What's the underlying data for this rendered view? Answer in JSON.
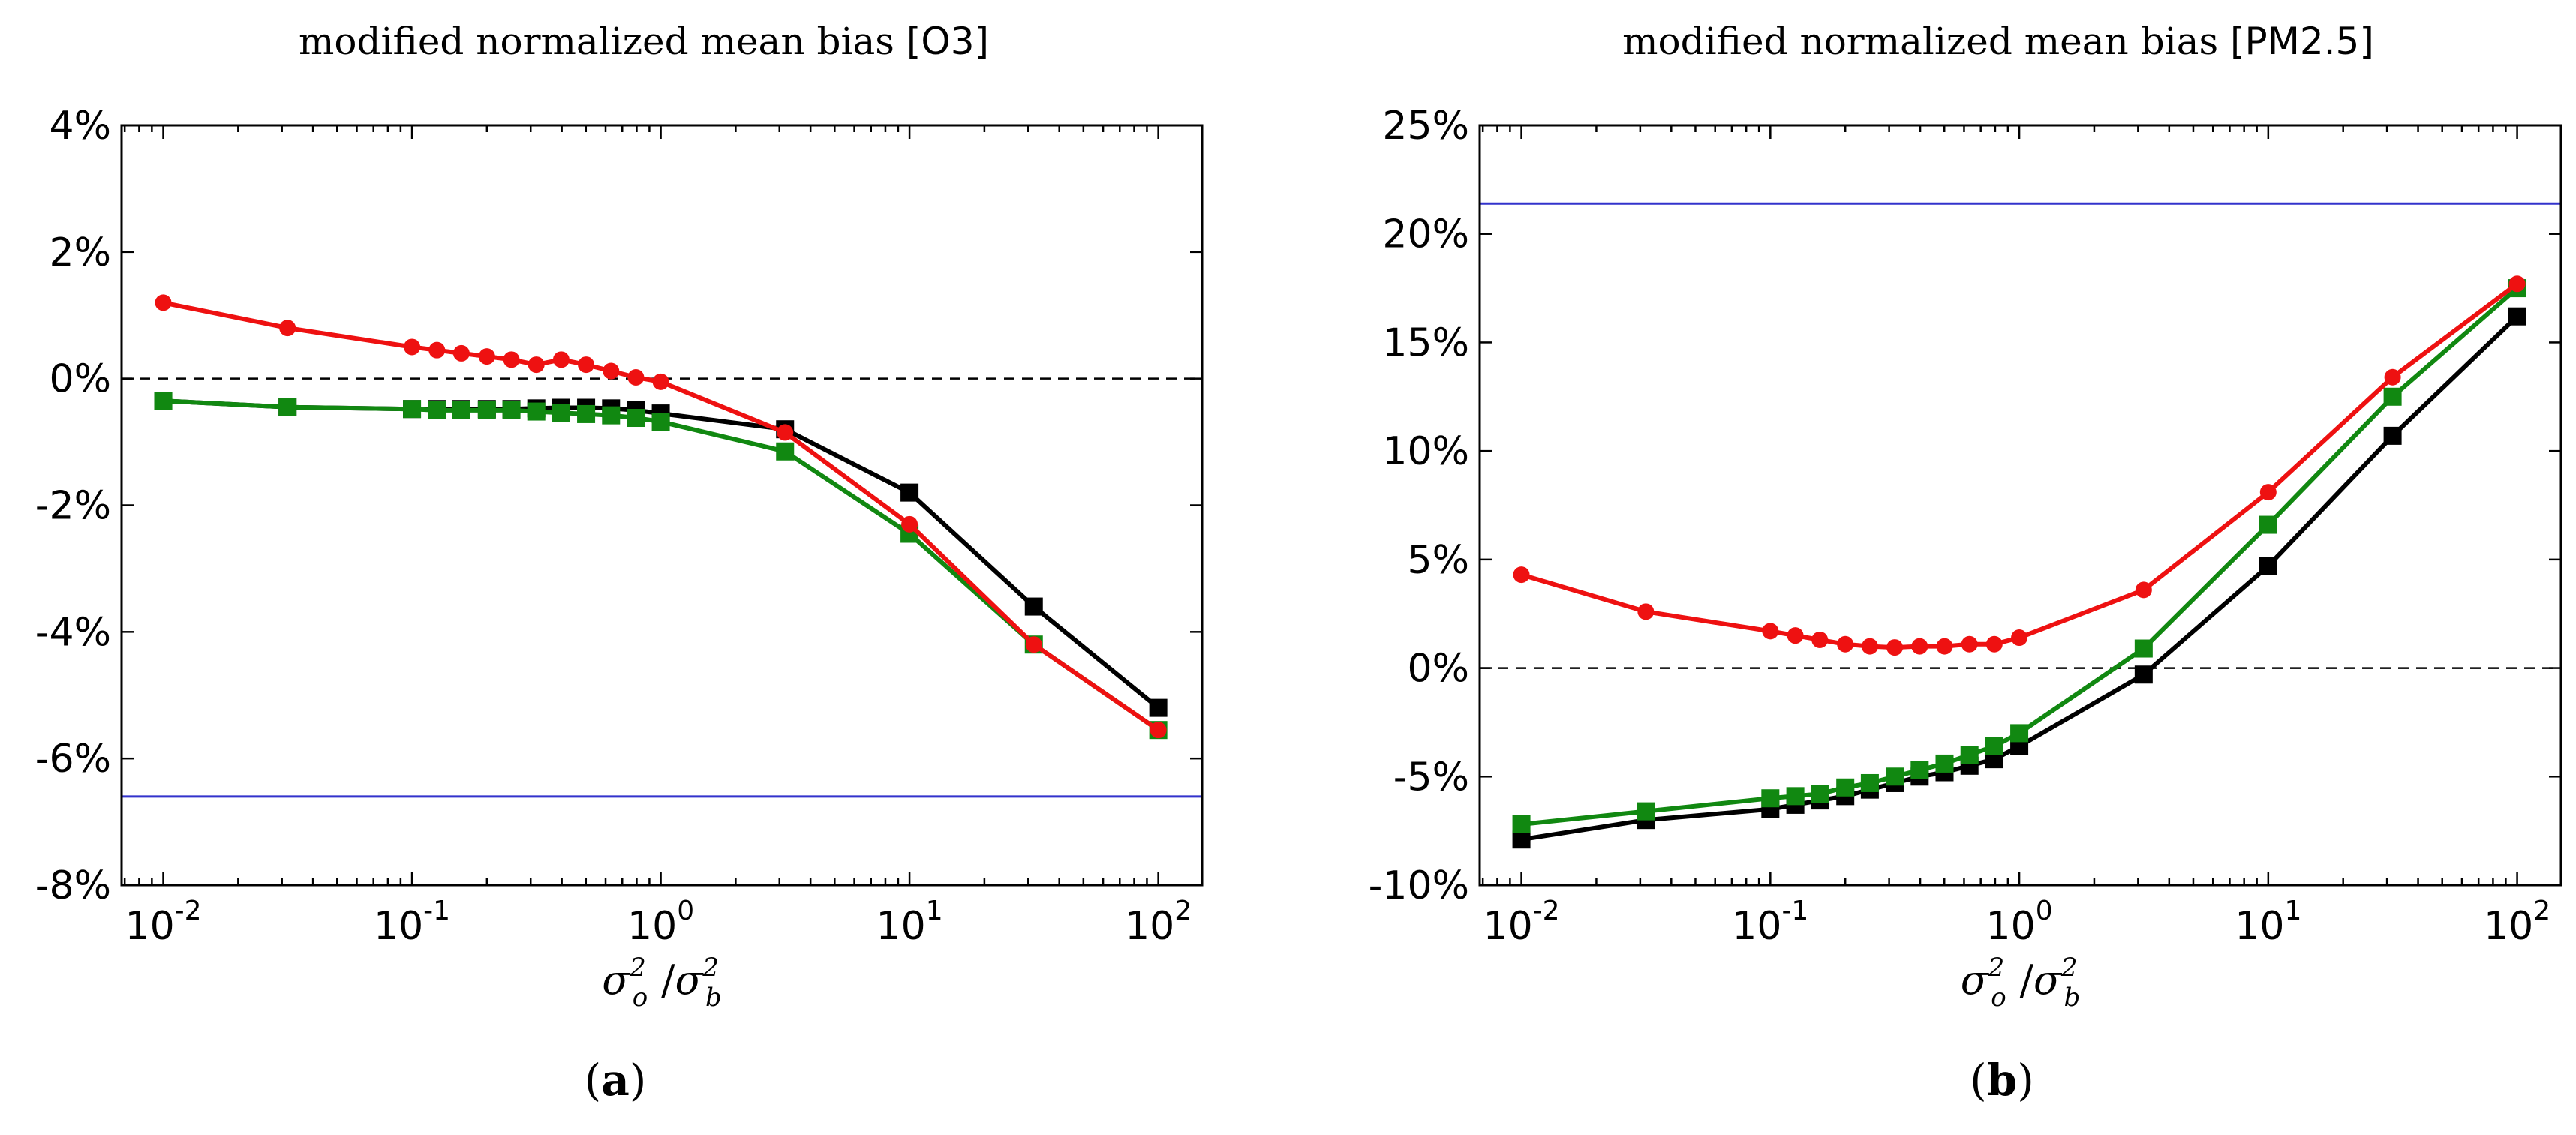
{
  "chart_data": [
    {
      "type": "line",
      "panel": "a",
      "title_prefix": "modified normalized mean bias",
      "title_species": "[O3]",
      "xlabel": "σo² /σb²",
      "xlabel_parts": {
        "sigma": "σ",
        "o": "o",
        "b": "b",
        "sq": "2",
        "slash": "/"
      },
      "caption": {
        "open": "(",
        "letter": "a",
        "close": ")"
      },
      "xscale": "log",
      "xlim": [
        0.0068,
        150
      ],
      "ylim": [
        -8,
        4
      ],
      "yticks": [
        4,
        2,
        0,
        -2,
        -4,
        -6,
        -8
      ],
      "ytick_labels": [
        "4%",
        "2%",
        "0%",
        "-2%",
        "-4%",
        "-6%",
        "-8%"
      ],
      "xticks": [
        0.01,
        0.1,
        1,
        10,
        100
      ],
      "xtick_base": "10",
      "xtick_exponents": [
        "-2",
        "-1",
        "0",
        "1",
        "2"
      ],
      "reference_lines": [
        {
          "name": "zero-line",
          "y": 0,
          "color": "#000000",
          "style": "dashed"
        },
        {
          "name": "baseline-line",
          "y": -6.6,
          "color": "#3333cc",
          "style": "solid"
        }
      ],
      "x": [
        0.01,
        0.0316,
        0.1,
        0.126,
        0.158,
        0.2,
        0.251,
        0.316,
        0.398,
        0.501,
        0.631,
        0.794,
        1.0,
        3.16,
        10,
        31.6,
        100
      ],
      "series": [
        {
          "name": "black",
          "color": "#000000",
          "marker": "square",
          "values": [
            -0.35,
            -0.45,
            -0.48,
            -0.48,
            -0.48,
            -0.48,
            -0.48,
            -0.47,
            -0.46,
            -0.46,
            -0.47,
            -0.5,
            -0.55,
            -0.8,
            -1.8,
            -3.6,
            -5.2
          ]
        },
        {
          "name": "green",
          "color": "#118811",
          "marker": "square",
          "values": [
            -0.35,
            -0.45,
            -0.48,
            -0.5,
            -0.5,
            -0.5,
            -0.5,
            -0.52,
            -0.54,
            -0.56,
            -0.58,
            -0.62,
            -0.68,
            -1.15,
            -2.45,
            -4.2,
            -5.55
          ]
        },
        {
          "name": "red",
          "color": "#ee1111",
          "marker": "circle",
          "values": [
            1.2,
            0.8,
            0.5,
            0.45,
            0.4,
            0.35,
            0.3,
            0.22,
            0.3,
            0.22,
            0.12,
            0.02,
            -0.05,
            -0.85,
            -2.3,
            -4.2,
            -5.55
          ]
        }
      ]
    },
    {
      "type": "line",
      "panel": "b",
      "title_prefix": "modified normalized mean bias",
      "title_species": "[PM2.5]",
      "xlabel": "σo² /σb²",
      "xlabel_parts": {
        "sigma": "σ",
        "o": "o",
        "b": "b",
        "sq": "2",
        "slash": "/"
      },
      "caption": {
        "open": "(",
        "letter": "b",
        "close": ")"
      },
      "xscale": "log",
      "xlim": [
        0.0068,
        150
      ],
      "ylim": [
        -10,
        25
      ],
      "yticks": [
        25,
        20,
        15,
        10,
        5,
        0,
        -5,
        -10
      ],
      "ytick_labels": [
        "25%",
        "20%",
        "15%",
        "10%",
        "5%",
        "0%",
        "-5%",
        "-10%"
      ],
      "xticks": [
        0.01,
        0.1,
        1,
        10,
        100
      ],
      "xtick_base": "10",
      "xtick_exponents": [
        "-2",
        "-1",
        "0",
        "1",
        "2"
      ],
      "reference_lines": [
        {
          "name": "zero-line",
          "y": 0,
          "color": "#000000",
          "style": "dashed"
        },
        {
          "name": "baseline-line",
          "y": 21.4,
          "color": "#3333cc",
          "style": "solid"
        }
      ],
      "x": [
        0.01,
        0.0316,
        0.1,
        0.126,
        0.158,
        0.2,
        0.251,
        0.316,
        0.398,
        0.501,
        0.631,
        0.794,
        1.0,
        3.16,
        10,
        31.6,
        100
      ],
      "series": [
        {
          "name": "black",
          "color": "#000000",
          "marker": "square",
          "values": [
            -7.9,
            -7.0,
            -6.5,
            -6.3,
            -6.1,
            -5.9,
            -5.6,
            -5.3,
            -5.0,
            -4.8,
            -4.5,
            -4.2,
            -3.6,
            -0.3,
            4.7,
            10.7,
            16.2
          ]
        },
        {
          "name": "green",
          "color": "#118811",
          "marker": "square",
          "values": [
            -7.2,
            -6.6,
            -6.0,
            -5.9,
            -5.8,
            -5.5,
            -5.3,
            -5.0,
            -4.7,
            -4.4,
            -4.0,
            -3.6,
            -3.0,
            0.9,
            6.6,
            12.5,
            17.5
          ]
        },
        {
          "name": "red",
          "color": "#ee1111",
          "marker": "circle",
          "values": [
            4.3,
            2.6,
            1.7,
            1.5,
            1.3,
            1.1,
            1.0,
            0.95,
            1.0,
            1.0,
            1.1,
            1.1,
            1.4,
            3.6,
            8.1,
            13.4,
            17.7
          ]
        }
      ]
    }
  ]
}
